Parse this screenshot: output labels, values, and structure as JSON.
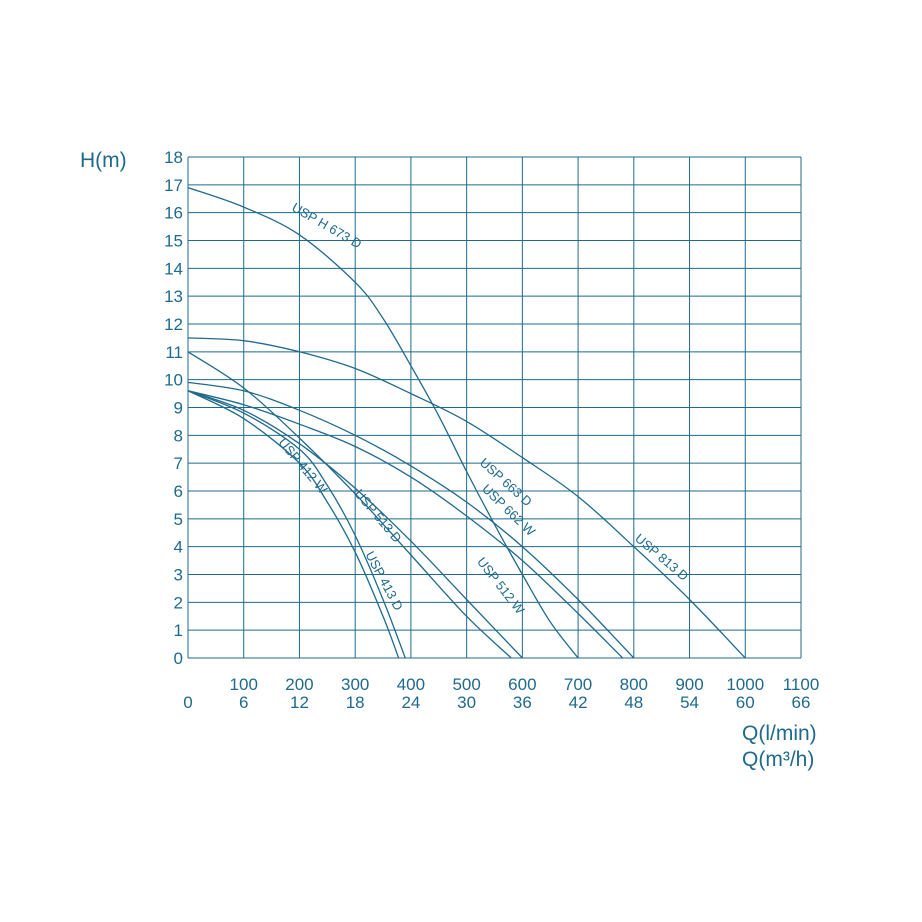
{
  "chart_data": {
    "type": "line",
    "y_title": "H(m)",
    "x_title_primary": "Q(l/min)",
    "x_title_secondary": "Q(m³/h)",
    "x_ticks_lmin": [
      "100",
      "200",
      "300",
      "400",
      "500",
      "600",
      "700",
      "800",
      "900",
      "1000",
      "1100"
    ],
    "x_ticks_m3h": [
      "0",
      "6",
      "12",
      "18",
      "24",
      "30",
      "36",
      "42",
      "48",
      "54",
      "60",
      "66"
    ],
    "y_ticks": [
      "0",
      "1",
      "2",
      "3",
      "4",
      "5",
      "6",
      "7",
      "8",
      "9",
      "10",
      "11",
      "12",
      "13",
      "14",
      "15",
      "16",
      "17",
      "18"
    ],
    "xlim": [
      0,
      1100
    ],
    "ylim": [
      0,
      18
    ],
    "grid": true,
    "colors": {
      "line": "#1f6a8c",
      "grid": "#1f6a8c",
      "text": "#1f6a8c"
    },
    "series": [
      {
        "name": "USP H 673 D",
        "x": [
          0,
          100,
          200,
          300,
          350,
          400,
          450,
          500,
          550,
          600,
          650,
          700
        ],
        "y": [
          16.9,
          16.2,
          15.2,
          13.5,
          12.2,
          10.5,
          8.7,
          6.7,
          4.8,
          3.0,
          1.3,
          0
        ]
      },
      {
        "name": "USP 813 D",
        "x": [
          0,
          100,
          200,
          300,
          400,
          500,
          600,
          700,
          800,
          900,
          1000
        ],
        "y": [
          11.5,
          11.4,
          11.0,
          10.4,
          9.5,
          8.5,
          7.2,
          5.8,
          4.0,
          2.1,
          0
        ]
      },
      {
        "name": "USP 663 D",
        "x": [
          0,
          100,
          200,
          300,
          400,
          500,
          600,
          700,
          800
        ],
        "y": [
          9.9,
          9.6,
          8.9,
          8.0,
          6.9,
          5.6,
          4.0,
          2.1,
          0
        ]
      },
      {
        "name": "USP 662 W",
        "x": [
          0,
          100,
          200,
          300,
          400,
          500,
          600,
          700,
          780
        ],
        "y": [
          9.6,
          9.1,
          8.4,
          7.6,
          6.5,
          5.1,
          3.5,
          1.6,
          0
        ]
      },
      {
        "name": "USP 512 W",
        "x": [
          0,
          100,
          200,
          300,
          400,
          500,
          600
        ],
        "y": [
          9.6,
          8.9,
          7.7,
          6.1,
          4.2,
          2.1,
          0
        ]
      },
      {
        "name": "USP 412 W",
        "x": [
          0,
          100,
          200,
          300,
          400,
          500,
          580
        ],
        "y": [
          11.0,
          9.7,
          7.9,
          5.9,
          3.7,
          1.5,
          0
        ]
      },
      {
        "name": "USP 513 D",
        "x": [
          0,
          100,
          200,
          250,
          300,
          350,
          390
        ],
        "y": [
          9.6,
          8.8,
          7.5,
          6.2,
          4.4,
          2.1,
          0
        ]
      },
      {
        "name": "USP 413 D",
        "x": [
          0,
          100,
          200,
          250,
          300,
          350,
          378
        ],
        "y": [
          9.6,
          8.6,
          7.0,
          5.6,
          3.8,
          1.5,
          0
        ]
      }
    ]
  }
}
